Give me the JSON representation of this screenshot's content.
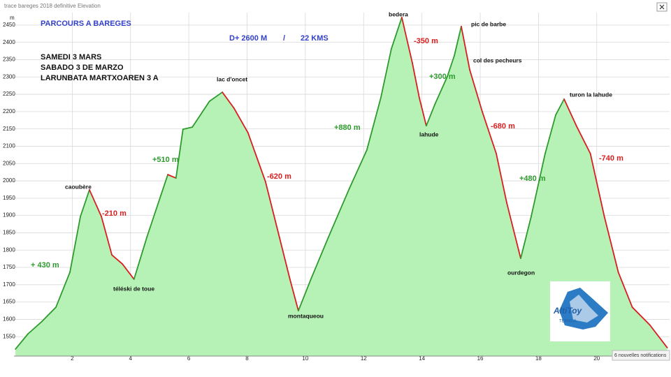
{
  "window": {
    "title": "trace bareges 2018 definitive  Elevation",
    "notification": "6 nouvelles notifications"
  },
  "chart_data": {
    "type": "area",
    "y_label": "m",
    "x": [
      0.05,
      0.48,
      0.96,
      1.44,
      1.92,
      2.28,
      2.59,
      3.0,
      3.36,
      3.72,
      4.12,
      4.56,
      5.04,
      5.28,
      5.56,
      5.8,
      6.12,
      6.71,
      7.15,
      7.55,
      8.03,
      8.63,
      9.11,
      9.47,
      9.76,
      10.19,
      10.79,
      11.51,
      12.11,
      12.59,
      12.95,
      13.31,
      13.67,
      13.91,
      14.15,
      14.44,
      14.87,
      15.11,
      15.35,
      15.64,
      16.07,
      16.55,
      16.91,
      17.39,
      17.75,
      18.23,
      18.59,
      18.88,
      19.3,
      19.78,
      20.26,
      20.74,
      21.22,
      21.82,
      22.42
    ],
    "values": [
      1514,
      1558,
      1594,
      1635,
      1736,
      1897,
      1974,
      1897,
      1786,
      1760,
      1716,
      1837,
      1958,
      2018,
      2008,
      2149,
      2155,
      2230,
      2256,
      2210,
      2139,
      1998,
      1837,
      1716,
      1625,
      1716,
      1837,
      1978,
      2089,
      2240,
      2381,
      2472,
      2341,
      2240,
      2159,
      2220,
      2301,
      2361,
      2446,
      2321,
      2200,
      2079,
      1937,
      1776,
      1897,
      2079,
      2190,
      2236,
      2159,
      2079,
      1897,
      1736,
      1635,
      1584,
      1518
    ],
    "xlim": [
      0,
      22.5
    ],
    "ylim": [
      1494,
      2486
    ],
    "xticks": [
      2,
      4,
      6,
      8,
      10,
      12,
      14,
      16,
      18,
      20
    ],
    "yticks": [
      1550,
      1600,
      1650,
      1700,
      1750,
      1800,
      1850,
      1900,
      1950,
      2000,
      2050,
      2100,
      2150,
      2200,
      2250,
      2300,
      2350,
      2400,
      2450
    ],
    "grid": true,
    "fill_color": "#b6f2b6",
    "ascent_color": "#2e9a2e",
    "descent_color": "#d81e1e",
    "info_text": [
      {
        "text": "PARCOURS A BAREGES",
        "color": "#3341c8"
      },
      {
        "text": "D+ 2600 M",
        "color": "#3341c8"
      },
      {
        "text": "/",
        "color": "#3341c8"
      },
      {
        "text": "22 KMS",
        "color": "#3341c8"
      },
      {
        "text": "SAMEDI 3 MARS",
        "color": "#111111"
      },
      {
        "text": "SABADO 3 DE MARZO",
        "color": "#111111"
      },
      {
        "text": "LARUNBATA MARTXOAREN 3 A",
        "color": "#111111"
      }
    ],
    "place_labels": [
      "caoubère",
      "téléski de toue",
      "lac d'oncet",
      "montaqueou",
      "bedera",
      "lahude",
      "pic de barbe",
      "col des pecheurs",
      "ourdegon",
      "turon la lahude"
    ],
    "gain_labels": [
      {
        "text": "+ 430 m",
        "color": "#2e9a2e"
      },
      {
        "text": "-210 m",
        "color": "#d81e1e"
      },
      {
        "text": "+510 m",
        "color": "#2e9a2e"
      },
      {
        "text": "-620 m",
        "color": "#d81e1e"
      },
      {
        "text": "+880 m",
        "color": "#2e9a2e"
      },
      {
        "text": "-350 m",
        "color": "#d81e1e"
      },
      {
        "text": "+300 m",
        "color": "#2e9a2e"
      },
      {
        "text": "-680 m",
        "color": "#d81e1e"
      },
      {
        "text": "+480 m",
        "color": "#2e9a2e"
      },
      {
        "text": "-740 m",
        "color": "#d81e1e"
      }
    ],
    "logo": {
      "name": "AltiToy",
      "sub": "TERNUA"
    }
  }
}
